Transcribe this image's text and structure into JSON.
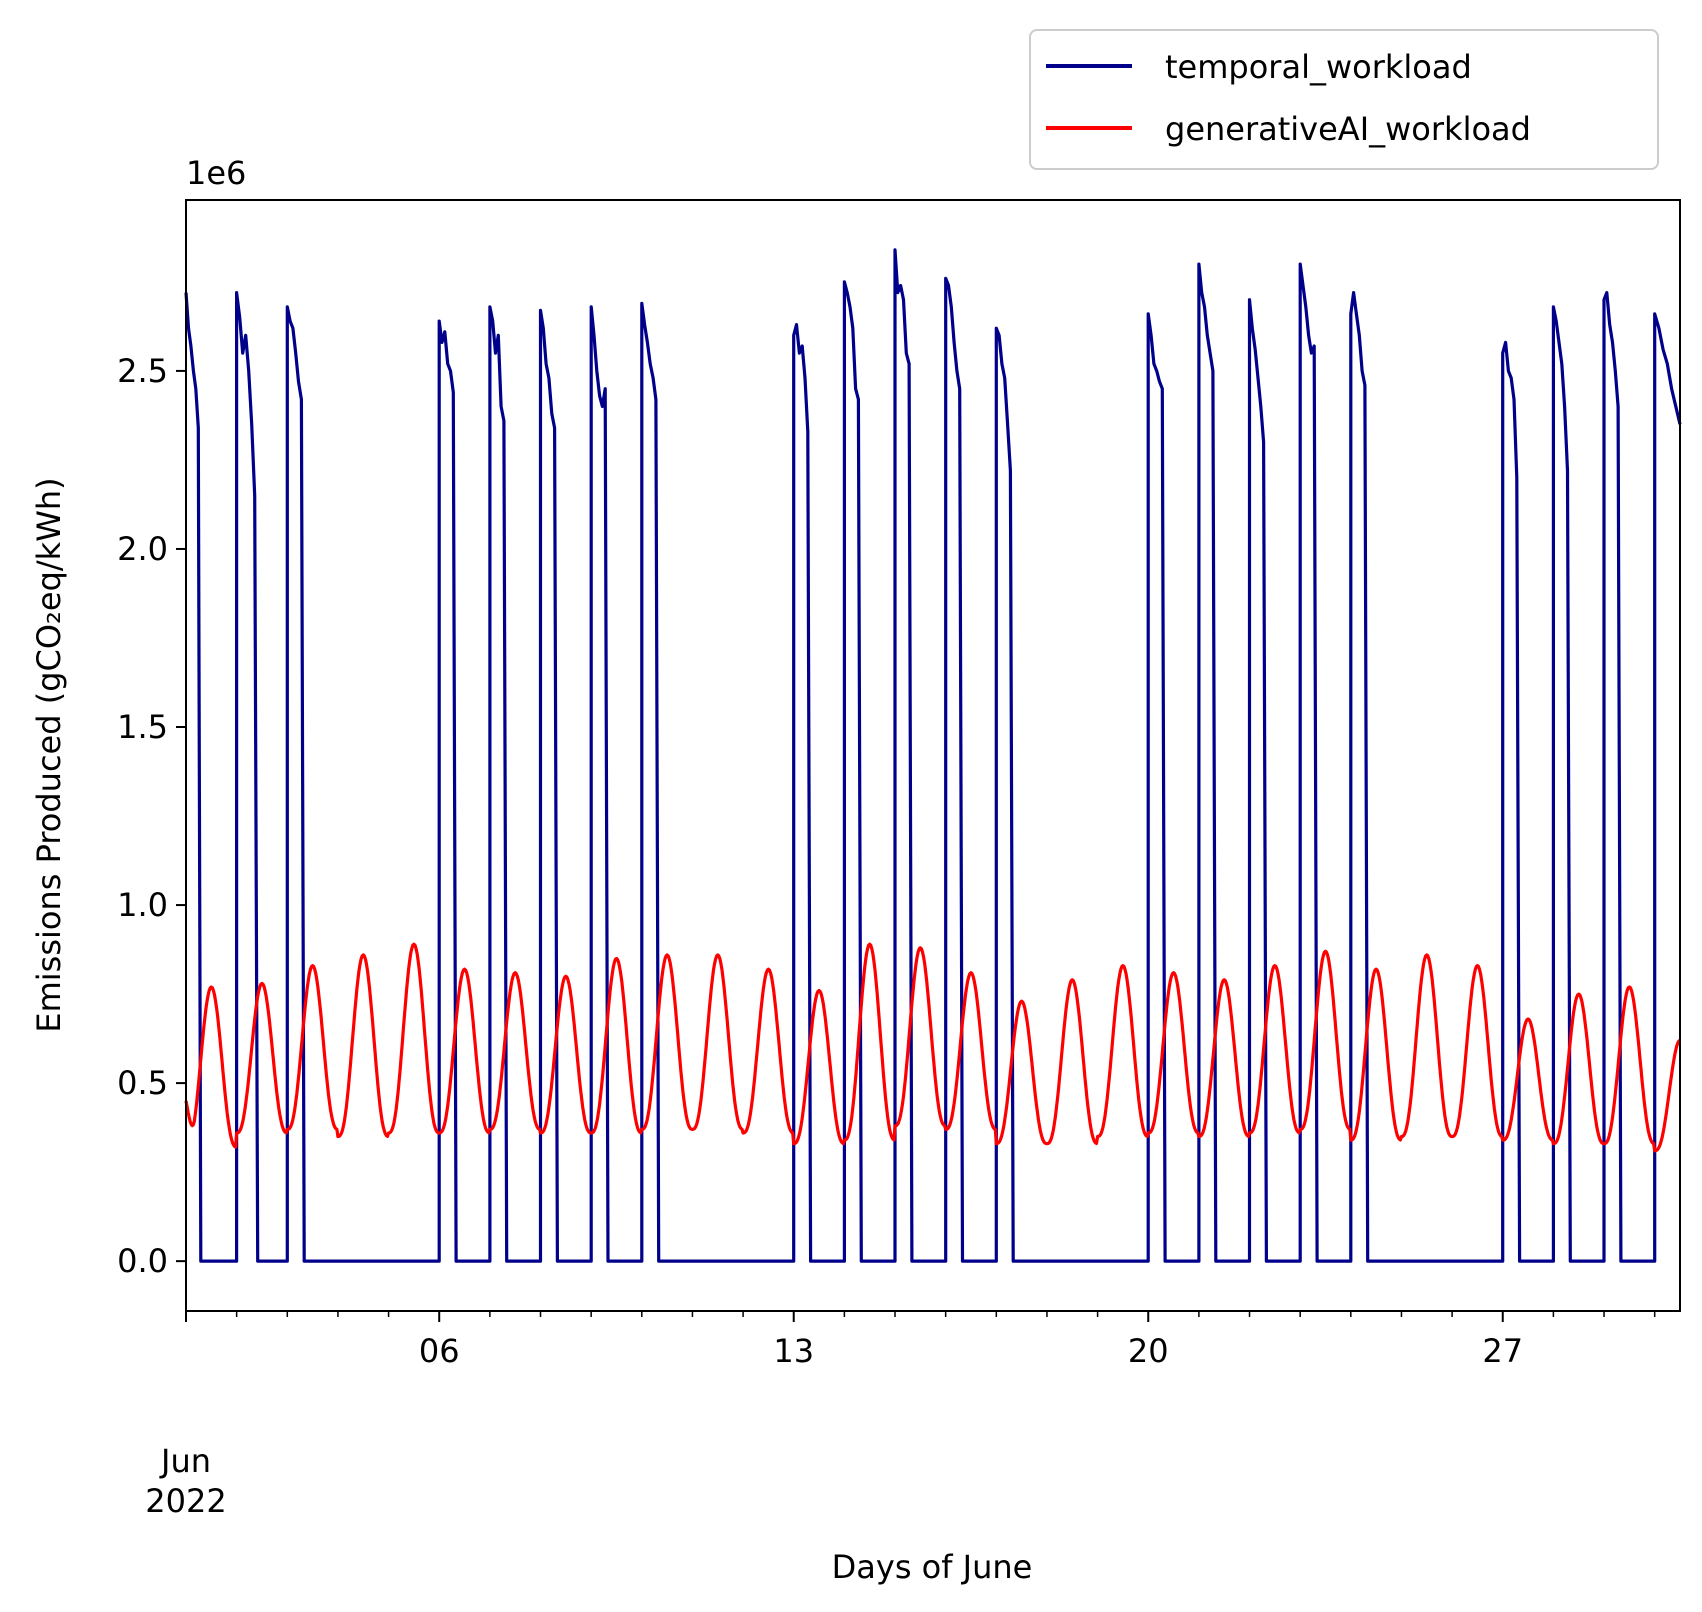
{
  "chart_data": {
    "type": "line",
    "title": "",
    "xlabel": "Days of June",
    "ylabel": "Emissions Produced (gCO₂eq/kWh)",
    "y_offset_label": "1e6",
    "y_scale_factor": 1000000,
    "xlim": [
      "2022-06-01",
      "2022-06-30T12:00"
    ],
    "ylim": [
      -0.14,
      2.98
    ],
    "x_tick_labels": [
      {
        "value": "2022-06-01",
        "label": "Jun\n2022"
      },
      {
        "value": "2022-06-06",
        "label": "06"
      },
      {
        "value": "2022-06-13",
        "label": "13"
      },
      {
        "value": "2022-06-20",
        "label": "20"
      },
      {
        "value": "2022-06-27",
        "label": "27"
      }
    ],
    "y_ticks": [
      {
        "value": 0.0,
        "label": "0.0"
      },
      {
        "value": 0.5,
        "label": "0.5"
      },
      {
        "value": 1.0,
        "label": "1.0"
      },
      {
        "value": 1.5,
        "label": "1.5"
      },
      {
        "value": 2.0,
        "label": "2.0"
      },
      {
        "value": 2.5,
        "label": "2.5"
      }
    ],
    "grid": false,
    "legend_position": "upper-right, above plot",
    "series": [
      {
        "name": "temporal_workload",
        "color": "#00008b",
        "note_units": "values in millions (1e6)",
        "on_periods": [
          {
            "start": "2022-06-01T00:00",
            "end": "2022-06-01T07:00",
            "values": [
              2.72,
              2.62,
              2.57,
              2.5,
              2.45,
              2.34,
              0.0
            ]
          },
          {
            "start": "2022-06-02T00:00",
            "end": "2022-06-02T10:00",
            "values": [
              2.72,
              2.65,
              2.55,
              2.6,
              2.5,
              2.35,
              2.15,
              0.0
            ]
          },
          {
            "start": "2022-06-03T00:00",
            "end": "2022-06-03T08:00",
            "values": [
              2.68,
              2.64,
              2.62,
              2.55,
              2.47,
              2.42,
              0.0
            ]
          },
          {
            "start": "2022-06-06T00:00",
            "end": "2022-06-06T08:00",
            "values": [
              2.64,
              2.58,
              2.61,
              2.52,
              2.5,
              2.44,
              0.0
            ]
          },
          {
            "start": "2022-06-07T00:00",
            "end": "2022-06-07T08:00",
            "values": [
              2.68,
              2.64,
              2.55,
              2.6,
              2.4,
              2.36,
              0.0
            ]
          },
          {
            "start": "2022-06-08T00:00",
            "end": "2022-06-08T08:00",
            "values": [
              2.67,
              2.62,
              2.52,
              2.48,
              2.38,
              2.34,
              0.0
            ]
          },
          {
            "start": "2022-06-09T00:00",
            "end": "2022-06-09T08:00",
            "values": [
              2.68,
              2.6,
              2.5,
              2.43,
              2.4,
              2.45,
              0.0
            ]
          },
          {
            "start": "2022-06-10T00:00",
            "end": "2022-06-10T08:00",
            "values": [
              2.69,
              2.63,
              2.58,
              2.52,
              2.48,
              2.42,
              0.0
            ]
          },
          {
            "start": "2022-06-13T00:00",
            "end": "2022-06-13T08:00",
            "values": [
              2.6,
              2.63,
              2.55,
              2.57,
              2.48,
              2.33,
              0.0
            ]
          },
          {
            "start": "2022-06-14T00:00",
            "end": "2022-06-14T08:00",
            "values": [
              2.75,
              2.72,
              2.68,
              2.62,
              2.45,
              2.42,
              0.0
            ]
          },
          {
            "start": "2022-06-15T00:00",
            "end": "2022-06-15T08:00",
            "values": [
              2.84,
              2.72,
              2.74,
              2.7,
              2.55,
              2.52,
              0.0
            ]
          },
          {
            "start": "2022-06-16T00:00",
            "end": "2022-06-16T08:00",
            "values": [
              2.76,
              2.74,
              2.68,
              2.58,
              2.5,
              2.45,
              0.0
            ]
          },
          {
            "start": "2022-06-17T00:00",
            "end": "2022-06-17T08:00",
            "values": [
              2.62,
              2.6,
              2.52,
              2.48,
              2.35,
              2.22,
              0.0
            ]
          },
          {
            "start": "2022-06-20T00:00",
            "end": "2022-06-20T08:00",
            "values": [
              2.66,
              2.6,
              2.52,
              2.5,
              2.47,
              2.45,
              0.0
            ]
          },
          {
            "start": "2022-06-21T00:00",
            "end": "2022-06-21T08:00",
            "values": [
              2.8,
              2.72,
              2.68,
              2.6,
              2.55,
              2.5,
              0.0
            ]
          },
          {
            "start": "2022-06-22T00:00",
            "end": "2022-06-22T08:00",
            "values": [
              2.7,
              2.62,
              2.56,
              2.48,
              2.4,
              2.3,
              0.0
            ]
          },
          {
            "start": "2022-06-23T00:00",
            "end": "2022-06-23T08:00",
            "values": [
              2.8,
              2.74,
              2.68,
              2.6,
              2.55,
              2.57,
              0.0
            ]
          },
          {
            "start": "2022-06-24T00:00",
            "end": "2022-06-24T08:00",
            "values": [
              2.66,
              2.72,
              2.66,
              2.6,
              2.5,
              2.46,
              0.0
            ]
          },
          {
            "start": "2022-06-27T00:00",
            "end": "2022-06-27T08:00",
            "values": [
              2.55,
              2.58,
              2.5,
              2.48,
              2.42,
              2.2,
              0.0
            ]
          },
          {
            "start": "2022-06-28T00:00",
            "end": "2022-06-28T08:00",
            "values": [
              2.68,
              2.64,
              2.58,
              2.52,
              2.4,
              2.22,
              0.0
            ]
          },
          {
            "start": "2022-06-29T00:00",
            "end": "2022-06-29T08:00",
            "values": [
              2.7,
              2.72,
              2.63,
              2.58,
              2.5,
              2.4,
              0.0
            ]
          },
          {
            "start": "2022-06-30T00:00",
            "end": "2022-06-30T12:00",
            "values": [
              2.66,
              2.62,
              2.56,
              2.52,
              2.45,
              2.4,
              2.35
            ]
          }
        ]
      },
      {
        "name": "generativeAI_workload",
        "color": "#ff0000",
        "note_units": "values in millions (1e6), one daily cycle per day",
        "daily_peaks": [
          0.77,
          0.78,
          0.83,
          0.86,
          0.89,
          0.82,
          0.81,
          0.8,
          0.85,
          0.86,
          0.86,
          0.82,
          0.76,
          0.89,
          0.88,
          0.81,
          0.73,
          0.79,
          0.83,
          0.81,
          0.79,
          0.83,
          0.87,
          0.82,
          0.86,
          0.83,
          0.68,
          0.75,
          0.77,
          0.62
        ],
        "daily_troughs": [
          0.32,
          0.36,
          0.37,
          0.35,
          0.36,
          0.36,
          0.37,
          0.36,
          0.36,
          0.37,
          0.37,
          0.36,
          0.33,
          0.34,
          0.38,
          0.37,
          0.33,
          0.33,
          0.35,
          0.36,
          0.35,
          0.36,
          0.37,
          0.34,
          0.35,
          0.35,
          0.34,
          0.33,
          0.33,
          0.31
        ],
        "start_value": 0.45,
        "end_value": 0.62
      }
    ]
  }
}
